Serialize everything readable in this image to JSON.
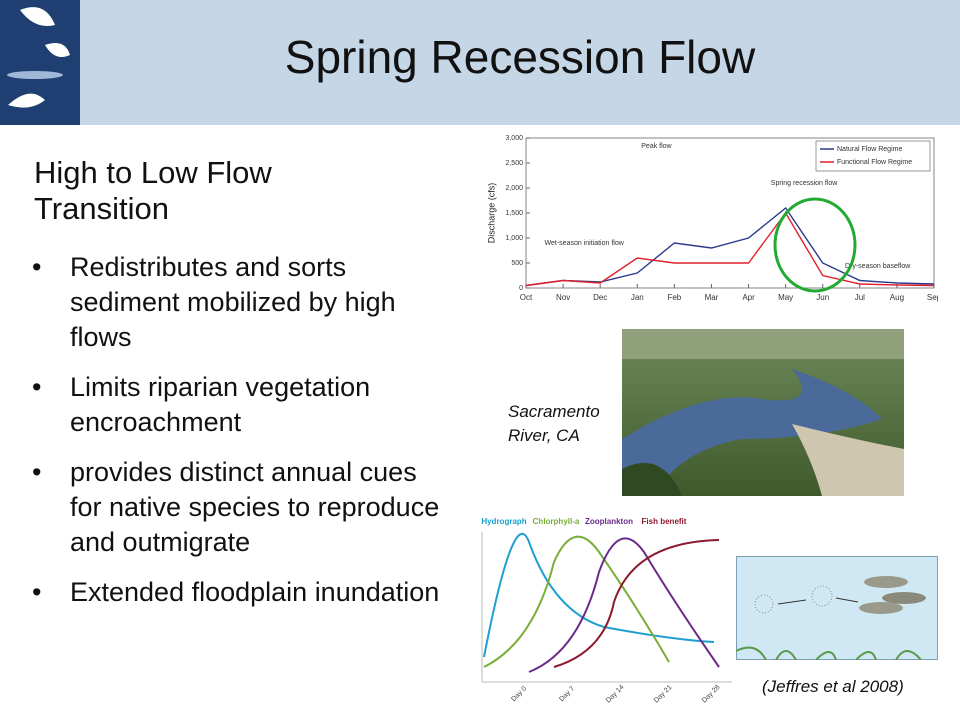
{
  "header": {
    "title": "Spring Recession Flow"
  },
  "body": {
    "heading": "High to Low Flow Transition",
    "bullets": [
      "Redistributes and sorts sediment mobilized by high flows",
      "Limits riparian vegetation encroachment",
      "provides distinct annual cues for native species to reproduce and outmigrate",
      "Extended floodplain inundation"
    ]
  },
  "photo_caption": "Sacramento River, CA",
  "citation": "(Jeffres et al 2008)",
  "chart_data": {
    "type": "line",
    "y_label": "Discharge (cfs)",
    "categories": [
      "Oct",
      "Nov",
      "Dec",
      "Jan",
      "Feb",
      "Mar",
      "Apr",
      "May",
      "Jun",
      "Jul",
      "Aug",
      "Sep"
    ],
    "series": [
      {
        "name": "Natural Flow Regime",
        "color": "#2b3a8c",
        "values": [
          50,
          150,
          120,
          300,
          900,
          800,
          1000,
          1600,
          500,
          150,
          100,
          80
        ]
      },
      {
        "name": "Functional Flow Regime",
        "color": "#e0202a",
        "values": [
          50,
          150,
          100,
          600,
          500,
          500,
          500,
          1500,
          250,
          80,
          60,
          50
        ]
      }
    ],
    "ylim": [
      0,
      3000
    ],
    "yticks": [
      0,
      500,
      {
        "value": 1000,
        "label": "1,000"
      },
      {
        "value": 1500,
        "label": "1,500"
      },
      {
        "value": 2000,
        "label": "2,000"
      },
      {
        "value": 2500,
        "label": "2,500"
      },
      {
        "value": 3000,
        "label": "3,000"
      }
    ],
    "legend": "top-right",
    "annotations": [
      "Peak flow",
      "Wet-season initiation flow",
      "Spring recession flow",
      "Dry-season baseflow"
    ]
  },
  "concept_figure": {
    "series": [
      {
        "name": "Hydrograph",
        "color": "#1e9fd0"
      },
      {
        "name": "Chlorphyll-a",
        "color": "#7aae3a"
      },
      {
        "name": "Zooplankton",
        "color": "#6a2a8c"
      },
      {
        "name": "Fish benefit",
        "color": "#8c1a2c"
      }
    ],
    "x_labels": [
      "Day 0",
      "Day 7",
      "Day 14",
      "Day 21",
      "Day 28"
    ]
  }
}
